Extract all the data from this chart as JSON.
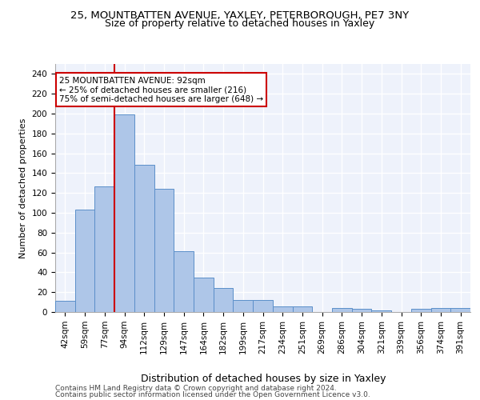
{
  "title1": "25, MOUNTBATTEN AVENUE, YAXLEY, PETERBOROUGH, PE7 3NY",
  "title2": "Size of property relative to detached houses in Yaxley",
  "xlabel": "Distribution of detached houses by size in Yaxley",
  "ylabel": "Number of detached properties",
  "categories": [
    "42sqm",
    "59sqm",
    "77sqm",
    "94sqm",
    "112sqm",
    "129sqm",
    "147sqm",
    "164sqm",
    "182sqm",
    "199sqm",
    "217sqm",
    "234sqm",
    "251sqm",
    "269sqm",
    "286sqm",
    "304sqm",
    "321sqm",
    "339sqm",
    "356sqm",
    "374sqm",
    "391sqm"
  ],
  "values": [
    11,
    103,
    127,
    199,
    148,
    124,
    61,
    35,
    24,
    12,
    12,
    6,
    6,
    0,
    4,
    3,
    2,
    0,
    3,
    4,
    4
  ],
  "bar_color": "#aec6e8",
  "bar_edgecolor": "#5b8fc9",
  "annotation_text": "25 MOUNTBATTEN AVENUE: 92sqm\n← 25% of detached houses are smaller (216)\n75% of semi-detached houses are larger (648) →",
  "annotation_box_color": "#ffffff",
  "annotation_box_edgecolor": "#cc0000",
  "redline_color": "#cc0000",
  "ylim": [
    0,
    250
  ],
  "yticks": [
    0,
    20,
    40,
    60,
    80,
    100,
    120,
    140,
    160,
    180,
    200,
    220,
    240
  ],
  "footer1": "Contains HM Land Registry data © Crown copyright and database right 2024.",
  "footer2": "Contains public sector information licensed under the Open Government Licence v3.0.",
  "background_color": "#eef2fb",
  "grid_color": "#ffffff",
  "title1_fontsize": 9.5,
  "title2_fontsize": 9,
  "xlabel_fontsize": 9,
  "ylabel_fontsize": 8,
  "tick_fontsize": 7.5,
  "footer_fontsize": 6.5,
  "annotation_fontsize": 7.5
}
